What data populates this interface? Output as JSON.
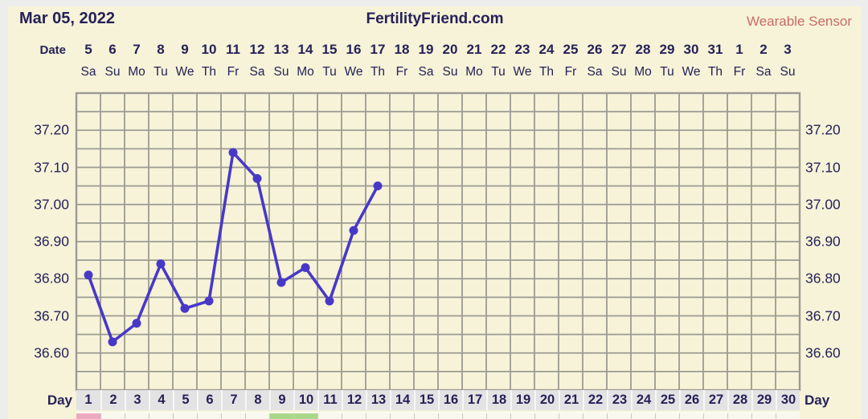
{
  "header": {
    "date": "Mar 05, 2022",
    "site": "FertilityFriend.com",
    "sensor": "Wearable Sensor"
  },
  "axes": {
    "date_row_label": "Date",
    "day_row_label_left": "Day",
    "day_row_label_right": "Day",
    "dates": [
      "5",
      "6",
      "7",
      "8",
      "9",
      "10",
      "11",
      "12",
      "13",
      "14",
      "15",
      "16",
      "17",
      "18",
      "19",
      "20",
      "21",
      "22",
      "23",
      "24",
      "25",
      "26",
      "27",
      "28",
      "29",
      "30",
      "31",
      "1",
      "2",
      "3"
    ],
    "weekdays": [
      "Sa",
      "Su",
      "Mo",
      "Tu",
      "We",
      "Th",
      "Fr",
      "Sa",
      "Su",
      "Mo",
      "Tu",
      "We",
      "Th",
      "Fr",
      "Sa",
      "Su",
      "Mo",
      "Tu",
      "We",
      "Th",
      "Fr",
      "Sa",
      "Su",
      "Mo",
      "Tu",
      "We",
      "Th",
      "Fr",
      "Sa",
      "Su"
    ],
    "day_numbers": [
      "1",
      "2",
      "3",
      "4",
      "5",
      "6",
      "7",
      "8",
      "9",
      "10",
      "11",
      "12",
      "13",
      "14",
      "15",
      "16",
      "17",
      "18",
      "19",
      "20",
      "21",
      "22",
      "23",
      "24",
      "25",
      "26",
      "27",
      "28",
      "29",
      "30"
    ],
    "temp_ticks": [
      "36.60",
      "36.70",
      "36.80",
      "36.90",
      "37.00",
      "37.10",
      "37.20"
    ]
  },
  "chart_data": {
    "type": "line",
    "title": "FertilityFriend.com",
    "subtitle": "Mar 05, 2022",
    "xlabel": "Day",
    "ylabel": "",
    "x_days": [
      1,
      2,
      3,
      4,
      5,
      6,
      7,
      8,
      9,
      10,
      11,
      12,
      13
    ],
    "temperatures": [
      36.81,
      36.63,
      36.68,
      36.84,
      36.72,
      36.74,
      37.14,
      37.07,
      36.79,
      36.83,
      36.74,
      36.93,
      37.05
    ],
    "ylim": [
      36.5,
      37.3
    ],
    "y_tick_values": [
      36.6,
      36.7,
      36.8,
      36.9,
      37.0,
      37.1,
      37.2
    ],
    "x_range": [
      1,
      30
    ],
    "grid": "on",
    "legend": "none",
    "marker_days": {
      "pink": [
        1
      ],
      "green": [
        9,
        10
      ]
    }
  },
  "colors": {
    "page_border": "#ededed",
    "background": "#f6f3d8",
    "grid": "#9b9b92",
    "line": "#4838c8",
    "text_navy": "#262158",
    "sensor_text": "#cb6a6a",
    "day_band": "#e3e3e3",
    "strip_pink": "#edaabf",
    "strip_green": "#aad88b",
    "strip_default": "#f8f8ee"
  }
}
